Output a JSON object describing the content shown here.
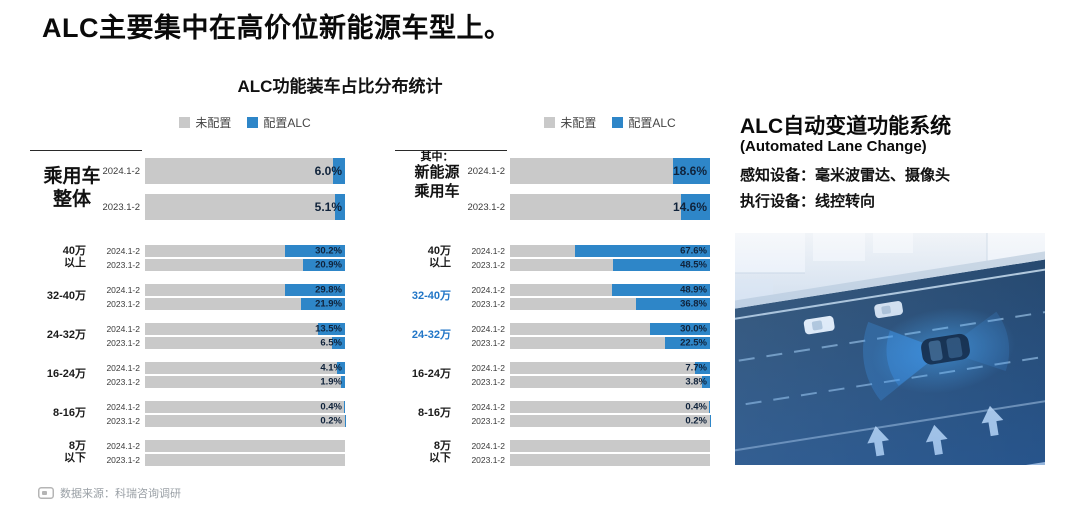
{
  "header": {
    "title": "ALC主要集中在高价位新能源车型上。"
  },
  "chart": {
    "subtitle": "ALC功能装车占比分布统计",
    "legend": {
      "not_equipped": "未配置",
      "equipped": "配置ALC"
    }
  },
  "colors": {
    "not_equipped": "#c9c9c9",
    "equipped": "#2e86c8",
    "highlight_label": "#2176c7",
    "value_text": "#10233b"
  },
  "info_panel": {
    "title": "ALC自动变道功能系统",
    "subtitle_en": "(Automated Lane Change)",
    "perception": "感知设备：毫米波雷达、摄像头",
    "actuation": "执行设备：线控转向"
  },
  "footer": {
    "source": "数据来源：科瑞咨询调研"
  },
  "chart_data": [
    {
      "type": "bar",
      "orientation": "horizontal-stacked",
      "title": "乘用车整体",
      "unit": "%",
      "xlim": [
        0,
        100
      ],
      "legend": [
        "未配置",
        "配置ALC"
      ],
      "group_label": {
        "prefix": "",
        "lines": [
          "乘用车",
          "整体"
        ]
      },
      "top_rows": [
        {
          "period": "2024.1-2",
          "alc_pct": 6.0,
          "label": "6.0%"
        },
        {
          "period": "2023.1-2",
          "alc_pct": 5.1,
          "label": "5.1%"
        }
      ],
      "segments": [
        {
          "name": "40万以上",
          "name_lines": [
            "40万",
            "以上"
          ],
          "highlight": false,
          "rows": [
            {
              "period": "2024.1-2",
              "alc_pct": 30.2,
              "label": "30.2%"
            },
            {
              "period": "2023.1-2",
              "alc_pct": 20.9,
              "label": "20.9%"
            }
          ]
        },
        {
          "name": "32-40万",
          "name_lines": [
            "32-40万"
          ],
          "highlight": false,
          "rows": [
            {
              "period": "2024.1-2",
              "alc_pct": 29.8,
              "label": "29.8%"
            },
            {
              "period": "2023.1-2",
              "alc_pct": 21.9,
              "label": "21.9%"
            }
          ]
        },
        {
          "name": "24-32万",
          "name_lines": [
            "24-32万"
          ],
          "highlight": false,
          "rows": [
            {
              "period": "2024.1-2",
              "alc_pct": 13.5,
              "label": "13.5%"
            },
            {
              "period": "2023.1-2",
              "alc_pct": 6.5,
              "label": "6.5%"
            }
          ]
        },
        {
          "name": "16-24万",
          "name_lines": [
            "16-24万"
          ],
          "highlight": false,
          "rows": [
            {
              "period": "2024.1-2",
              "alc_pct": 4.1,
              "label": "4.1%"
            },
            {
              "period": "2023.1-2",
              "alc_pct": 1.9,
              "label": "1.9%"
            }
          ]
        },
        {
          "name": "8-16万",
          "name_lines": [
            "8-16万"
          ],
          "highlight": false,
          "rows": [
            {
              "period": "2024.1-2",
              "alc_pct": 0.4,
              "label": "0.4%"
            },
            {
              "period": "2023.1-2",
              "alc_pct": 0.2,
              "label": "0.2%"
            }
          ]
        },
        {
          "name": "8万以下",
          "name_lines": [
            "8万",
            "以下"
          ],
          "highlight": false,
          "rows": [
            {
              "period": "2024.1-2",
              "alc_pct": 0,
              "label": ""
            },
            {
              "period": "2023.1-2",
              "alc_pct": 0,
              "label": ""
            }
          ]
        }
      ]
    },
    {
      "type": "bar",
      "orientation": "horizontal-stacked",
      "title": "其中：新能源乘用车",
      "unit": "%",
      "xlim": [
        0,
        100
      ],
      "legend": [
        "未配置",
        "配置ALC"
      ],
      "group_label": {
        "prefix": "其中：",
        "lines": [
          "新能源",
          "乘用车"
        ]
      },
      "top_rows": [
        {
          "period": "2024.1-2",
          "alc_pct": 18.6,
          "label": "18.6%"
        },
        {
          "period": "2023.1-2",
          "alc_pct": 14.6,
          "label": "14.6%"
        }
      ],
      "segments": [
        {
          "name": "40万以上",
          "name_lines": [
            "40万",
            "以上"
          ],
          "highlight": false,
          "rows": [
            {
              "period": "2024.1-2",
              "alc_pct": 67.6,
              "label": "67.6%"
            },
            {
              "period": "2023.1-2",
              "alc_pct": 48.5,
              "label": "48.5%"
            }
          ]
        },
        {
          "name": "32-40万",
          "name_lines": [
            "32-40万"
          ],
          "highlight": true,
          "rows": [
            {
              "period": "2024.1-2",
              "alc_pct": 48.9,
              "label": "48.9%"
            },
            {
              "period": "2023.1-2",
              "alc_pct": 36.8,
              "label": "36.8%"
            }
          ]
        },
        {
          "name": "24-32万",
          "name_lines": [
            "24-32万"
          ],
          "highlight": true,
          "rows": [
            {
              "period": "2024.1-2",
              "alc_pct": 30.0,
              "label": "30.0%"
            },
            {
              "period": "2023.1-2",
              "alc_pct": 22.5,
              "label": "22.5%"
            }
          ]
        },
        {
          "name": "16-24万",
          "name_lines": [
            "16-24万"
          ],
          "highlight": false,
          "rows": [
            {
              "period": "2024.1-2",
              "alc_pct": 7.7,
              "label": "7.7%"
            },
            {
              "period": "2023.1-2",
              "alc_pct": 3.8,
              "label": "3.8%"
            }
          ]
        },
        {
          "name": "8-16万",
          "name_lines": [
            "8-16万"
          ],
          "highlight": false,
          "rows": [
            {
              "period": "2024.1-2",
              "alc_pct": 0.4,
              "label": "0.4%"
            },
            {
              "period": "2023.1-2",
              "alc_pct": 0.2,
              "label": "0.2%"
            }
          ]
        },
        {
          "name": "8万以下",
          "name_lines": [
            "8万",
            "以下"
          ],
          "highlight": false,
          "rows": [
            {
              "period": "2024.1-2",
              "alc_pct": 0,
              "label": ""
            },
            {
              "period": "2023.1-2",
              "alc_pct": 0,
              "label": ""
            }
          ]
        }
      ]
    }
  ]
}
